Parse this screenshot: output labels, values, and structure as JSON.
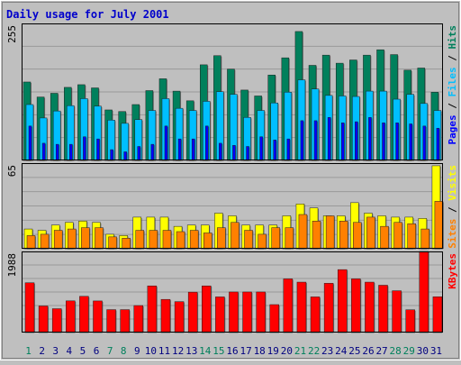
{
  "chart_data": {
    "type": "bar",
    "title": "Daily usage for July 2001",
    "days": [
      "1",
      "2",
      "3",
      "4",
      "5",
      "6",
      "7",
      "8",
      "9",
      "10",
      "11",
      "12",
      "13",
      "14",
      "15",
      "16",
      "17",
      "18",
      "19",
      "20",
      "21",
      "22",
      "23",
      "24",
      "25",
      "26",
      "27",
      "28",
      "29",
      "30",
      "31"
    ],
    "weekend_days": [
      "1",
      "7",
      "8",
      "14",
      "15",
      "21",
      "22",
      "28",
      "29"
    ],
    "panels": [
      {
        "id": "hits",
        "scale_max_label": "255",
        "ylim": [
          0,
          255
        ],
        "side_label": {
          "parts": [
            "Pages",
            "Files",
            "Hits"
          ],
          "separator": " / "
        },
        "series": [
          {
            "name": "Hits",
            "color": "#00805c",
            "values": [
              146,
              118,
              125,
              136,
              141,
              135,
              94,
              91,
              104,
              130,
              152,
              129,
              111,
              178,
              195,
              170,
              131,
              120,
              159,
              191,
              240,
              177,
              196,
              181,
              187,
              196,
              206,
              197,
              168,
              172,
              127
            ]
          },
          {
            "name": "Files",
            "color": "#00bfff",
            "values": [
              104,
              79,
              92,
              102,
              115,
              101,
              75,
              69,
              76,
              93,
              115,
              97,
              93,
              110,
              128,
              123,
              80,
              93,
              107,
              127,
              150,
              133,
              121,
              120,
              119,
              129,
              129,
              114,
              123,
              106,
              93
            ]
          },
          {
            "name": "Pages",
            "color": "#0000ff",
            "values": [
              64,
              32,
              30,
              30,
              44,
              40,
              20,
              16,
              26,
              30,
              64,
              40,
              40,
              64,
              32,
              28,
              26,
              44,
              38,
              40,
              74,
              74,
              80,
              70,
              72,
              80,
              70,
              70,
              68,
              64,
              60
            ]
          }
        ]
      },
      {
        "id": "visits",
        "scale_max_label": "65",
        "ylim": [
          0,
          65
        ],
        "side_label": {
          "parts": [
            "Sites",
            "Visits"
          ],
          "separator": " / "
        },
        "series": [
          {
            "name": "Visits",
            "color": "#ffff00",
            "values": [
              15,
              14,
              18,
              20,
              21,
              20,
              11,
              10,
              24,
              24,
              24,
              17,
              18,
              18,
              27,
              25,
              18,
              18,
              18,
              25,
              34,
              31,
              25,
              25,
              35,
              27,
              25,
              24,
              24,
              23,
              63
            ]
          },
          {
            "name": "Sites",
            "color": "#ff8000",
            "values": [
              10,
              11,
              14,
              15,
              16,
              16,
              9,
              8,
              14,
              14,
              14,
              13,
              14,
              12,
              16,
              20,
              14,
              11,
              16,
              16,
              26,
              21,
              25,
              21,
              20,
              24,
              17,
              20,
              19,
              15,
              36
            ]
          }
        ]
      },
      {
        "id": "kbytes",
        "scale_max_label": "1988",
        "ylim": [
          0,
          1988
        ],
        "side_label": {
          "parts": [
            "KBytes"
          ],
          "separator": ""
        },
        "series": [
          {
            "name": "KBytes",
            "color": "#ff0000",
            "values": [
              1220,
              652,
              585,
              777,
              888,
              775,
              562,
              562,
              662,
              1144,
              813,
              758,
              991,
              1144,
              874,
              995,
              995,
              995,
              685,
              1316,
              1236,
              874,
              1208,
              1543,
              1316,
              1236,
              1160,
              1025,
              558,
              1988,
              877
            ]
          }
        ]
      }
    ],
    "colors": {
      "background": "#bfbfbf",
      "plot": "#bfbfbf",
      "grid": "#9a9a9a",
      "title": "#0000cc",
      "weekday_label": "#000080",
      "weekend_label": "#00805c",
      "separator": "#000000"
    }
  }
}
